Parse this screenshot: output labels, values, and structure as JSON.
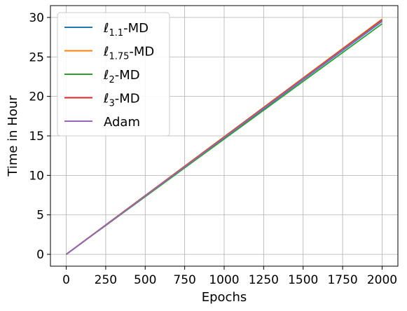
{
  "chart_data": {
    "type": "line",
    "xlabel": "Epochs",
    "ylabel": "Time in Hour",
    "xlim": [
      -100,
      2100
    ],
    "ylim": [
      -1.5,
      31.5
    ],
    "xticks": [
      0,
      250,
      500,
      750,
      1000,
      1250,
      1500,
      1750,
      2000
    ],
    "yticks": [
      0,
      5,
      10,
      15,
      20,
      25,
      30
    ],
    "grid": true,
    "legend_position": "top-left",
    "series": [
      {
        "name": "1.1-MD",
        "name_prefix": "ℓ",
        "name_sub": "1.1",
        "name_suffix": "-MD",
        "color": "#1f77b4",
        "x": [
          0,
          2000
        ],
        "y": [
          0,
          29.5
        ]
      },
      {
        "name": "1.75-MD",
        "name_prefix": "ℓ",
        "name_sub": "1.75",
        "name_suffix": "-MD",
        "color": "#ff7f0e",
        "x": [
          0,
          2000
        ],
        "y": [
          0,
          29.8
        ]
      },
      {
        "name": "2-MD",
        "name_prefix": "ℓ",
        "name_sub": "2",
        "name_suffix": "-MD",
        "color": "#2ca02c",
        "x": [
          0,
          2000
        ],
        "y": [
          0,
          29.2
        ]
      },
      {
        "name": "3-MD",
        "name_prefix": "ℓ",
        "name_sub": "3",
        "name_suffix": "-MD",
        "color": "#d62728",
        "x": [
          0,
          2000
        ],
        "y": [
          0,
          29.7
        ]
      },
      {
        "name": "Adam",
        "name_prefix": "",
        "name_sub": "",
        "name_suffix": "Adam",
        "color": "#9467bd",
        "x": [
          0,
          2000
        ],
        "y": [
          0,
          29.6
        ]
      }
    ]
  }
}
